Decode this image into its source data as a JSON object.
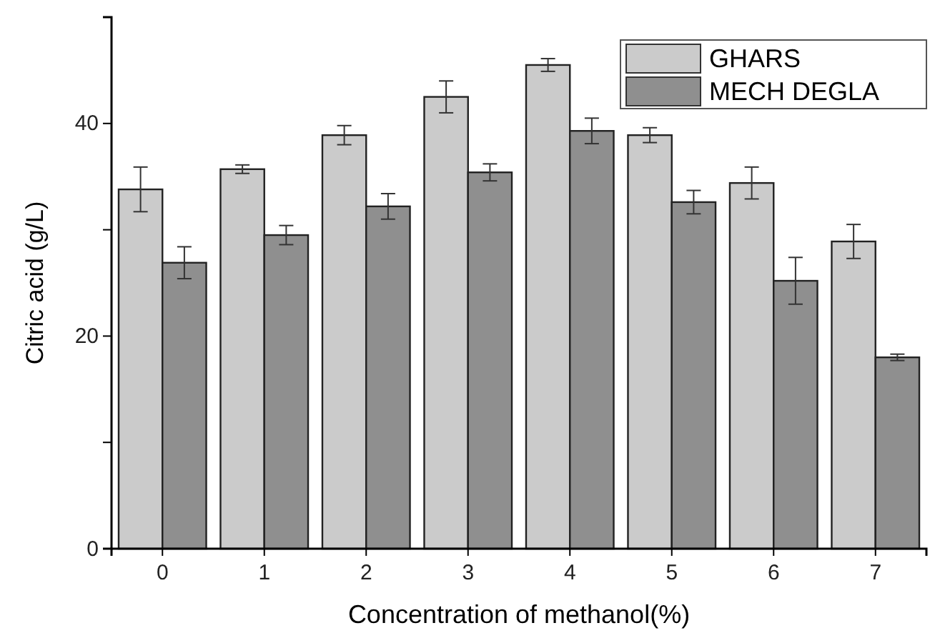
{
  "chart_data": {
    "type": "bar",
    "xlabel": "Concentration of methanol(%)",
    "ylabel": "Citric acid (g/L)",
    "categories": [
      "0",
      "1",
      "2",
      "3",
      "4",
      "5",
      "6",
      "7"
    ],
    "series": [
      {
        "name": "GHARS",
        "color": "#cbcbcb",
        "values": [
          33.8,
          35.7,
          38.9,
          42.5,
          45.5,
          38.9,
          34.4,
          28.9
        ],
        "errors": [
          2.1,
          0.4,
          0.9,
          1.5,
          0.6,
          0.7,
          1.5,
          1.6
        ]
      },
      {
        "name": "MECH DEGLA",
        "color": "#8f8f8f",
        "values": [
          26.9,
          29.5,
          32.2,
          35.4,
          39.3,
          32.6,
          25.2,
          18.0
        ],
        "errors": [
          1.5,
          0.9,
          1.2,
          0.8,
          1.2,
          1.1,
          2.2,
          0.3
        ]
      }
    ],
    "ylim": [
      0,
      50
    ],
    "yticks": [
      0,
      {
        "value": 10,
        "label": null
      },
      20,
      {
        "value": 30,
        "label": null
      },
      40,
      {
        "value": 50,
        "label": null
      }
    ],
    "legend": "top right"
  }
}
